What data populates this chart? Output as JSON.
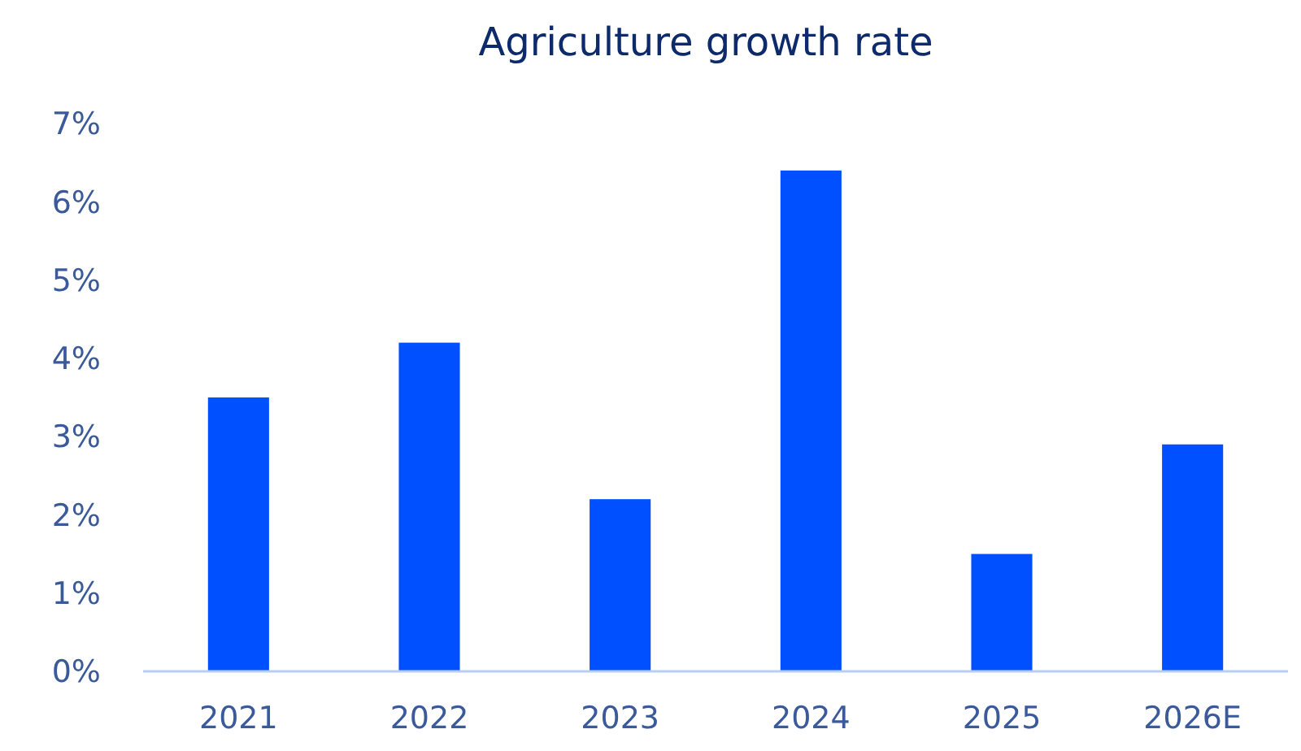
{
  "chart_data": {
    "type": "bar",
    "title": "Agriculture growth rate",
    "categories": [
      "2021",
      "2022",
      "2023",
      "2024",
      "2025",
      "2026E"
    ],
    "values": [
      3.5,
      4.2,
      2.2,
      6.4,
      1.5,
      2.9
    ],
    "color": "#0050ff",
    "ylim": [
      0,
      7
    ],
    "yticks": [
      {
        "value": 0,
        "label": "0%"
      },
      {
        "value": 1,
        "label": "1%"
      },
      {
        "value": 2,
        "label": "2%"
      },
      {
        "value": 3,
        "label": "3%"
      },
      {
        "value": 4,
        "label": "4%"
      },
      {
        "value": 5,
        "label": "5%"
      },
      {
        "value": 6,
        "label": "6%"
      },
      {
        "value": 7,
        "label": "7%"
      }
    ],
    "grid": false
  }
}
